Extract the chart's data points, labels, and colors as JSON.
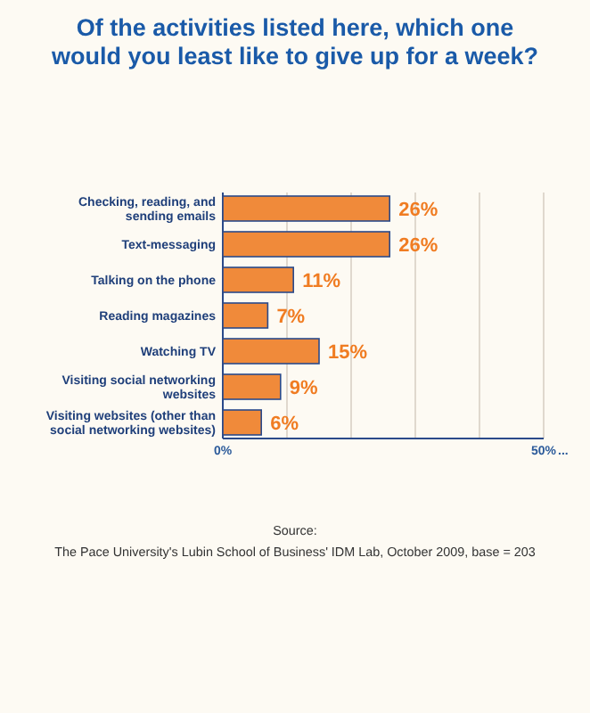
{
  "chart_data": {
    "type": "bar",
    "orientation": "horizontal",
    "title": "Of the activities listed here, which one would you least like to give up for a week?",
    "categories": [
      "Checking, reading, and sending emails",
      "Text-messaging",
      "Talking on the phone",
      "Reading magazines",
      "Watching TV",
      "Visiting social networking websites",
      "Visiting websites (other than social networking websites)"
    ],
    "values": [
      26,
      26,
      11,
      7,
      15,
      9,
      6
    ],
    "value_labels": [
      "26%",
      "26%",
      "11%",
      "7%",
      "15%",
      "9%",
      "6%"
    ],
    "color": "#f08a3a",
    "xlim": [
      0,
      50
    ],
    "xticks": [
      {
        "value": 0,
        "label": "0%"
      },
      {
        "value": 10,
        "label": null
      },
      {
        "value": 20,
        "label": null
      },
      {
        "value": 30,
        "label": null
      },
      {
        "value": 40,
        "label": null
      },
      {
        "value": 50,
        "label": "50%"
      }
    ],
    "grid": "x",
    "annotations": [
      "...",
      "Source:",
      "The Pace University's Lubin School of Business' IDM Lab, October 2009, base = 203"
    ]
  }
}
